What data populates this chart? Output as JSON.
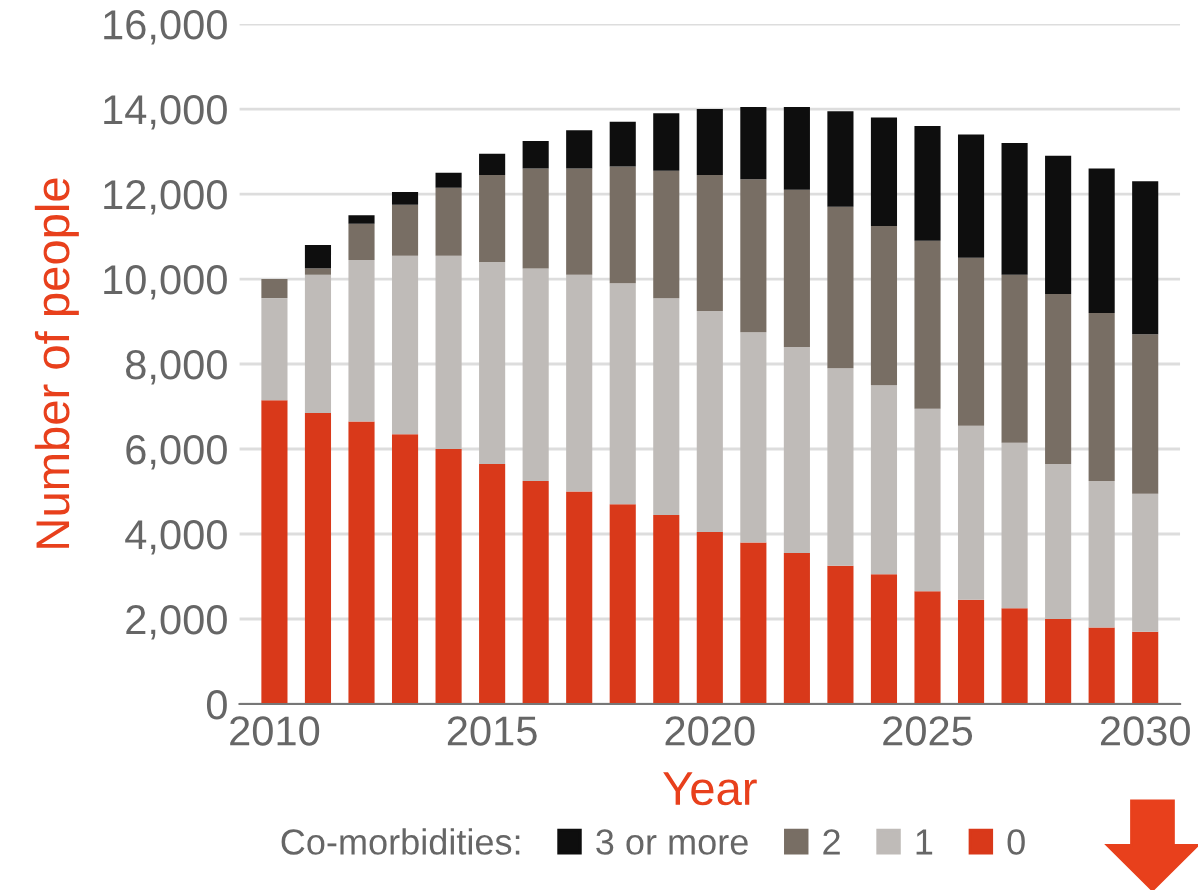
{
  "chart_data": {
    "type": "bar",
    "stacked": true,
    "xlabel": "Year",
    "ylabel": "Number of people",
    "legend_title": "Co-morbidities:",
    "legend": "bottom",
    "grid": "y",
    "x": [
      2010,
      2011,
      2012,
      2013,
      2014,
      2015,
      2016,
      2017,
      2018,
      2019,
      2020,
      2021,
      2022,
      2023,
      2024,
      2025,
      2026,
      2027,
      2028,
      2029,
      2030
    ],
    "xlim": [
      2009.2,
      2030.8
    ],
    "xticks": [
      2010,
      2015,
      2020,
      2025,
      2030
    ],
    "ylim": [
      0,
      16000
    ],
    "yticks": [
      {
        "value": 0,
        "label": "0"
      },
      {
        "value": 2000,
        "label": "2,000"
      },
      {
        "value": 4000,
        "label": "4,000"
      },
      {
        "value": 6000,
        "label": "6,000"
      },
      {
        "value": 8000,
        "label": "8,000"
      },
      {
        "value": 10000,
        "label": "10,000"
      },
      {
        "value": 12000,
        "label": "12,000"
      },
      {
        "value": 14000,
        "label": "14,000"
      },
      {
        "value": 16000,
        "label": "16,000"
      }
    ],
    "series": [
      {
        "name": "0",
        "color": "#d9391a",
        "values": [
          7150,
          6850,
          6650,
          6350,
          6000,
          5650,
          5250,
          5000,
          4700,
          4450,
          4050,
          3800,
          3550,
          3250,
          3050,
          2650,
          2450,
          2250,
          2000,
          1800,
          1700
        ]
      },
      {
        "name": "1",
        "color": "#bfbbb8",
        "values": [
          2400,
          3250,
          3800,
          4200,
          4550,
          4750,
          5000,
          5100,
          5200,
          5100,
          5200,
          4950,
          4850,
          4650,
          4450,
          4300,
          4100,
          3900,
          3650,
          3450,
          3250
        ]
      },
      {
        "name": "2",
        "color": "#786e64",
        "values": [
          450,
          150,
          850,
          1200,
          1600,
          2050,
          2350,
          2500,
          2750,
          3000,
          3200,
          3600,
          3700,
          3800,
          3750,
          3950,
          3950,
          3950,
          4000,
          3950,
          3750
        ]
      },
      {
        "name": "3 or more",
        "color": "#0e0e0e",
        "values": [
          null,
          550,
          200,
          300,
          350,
          500,
          650,
          900,
          1050,
          1350,
          1550,
          1700,
          1950,
          2250,
          2550,
          2700,
          2900,
          3100,
          3250,
          3400,
          3600
        ]
      }
    ]
  }
}
